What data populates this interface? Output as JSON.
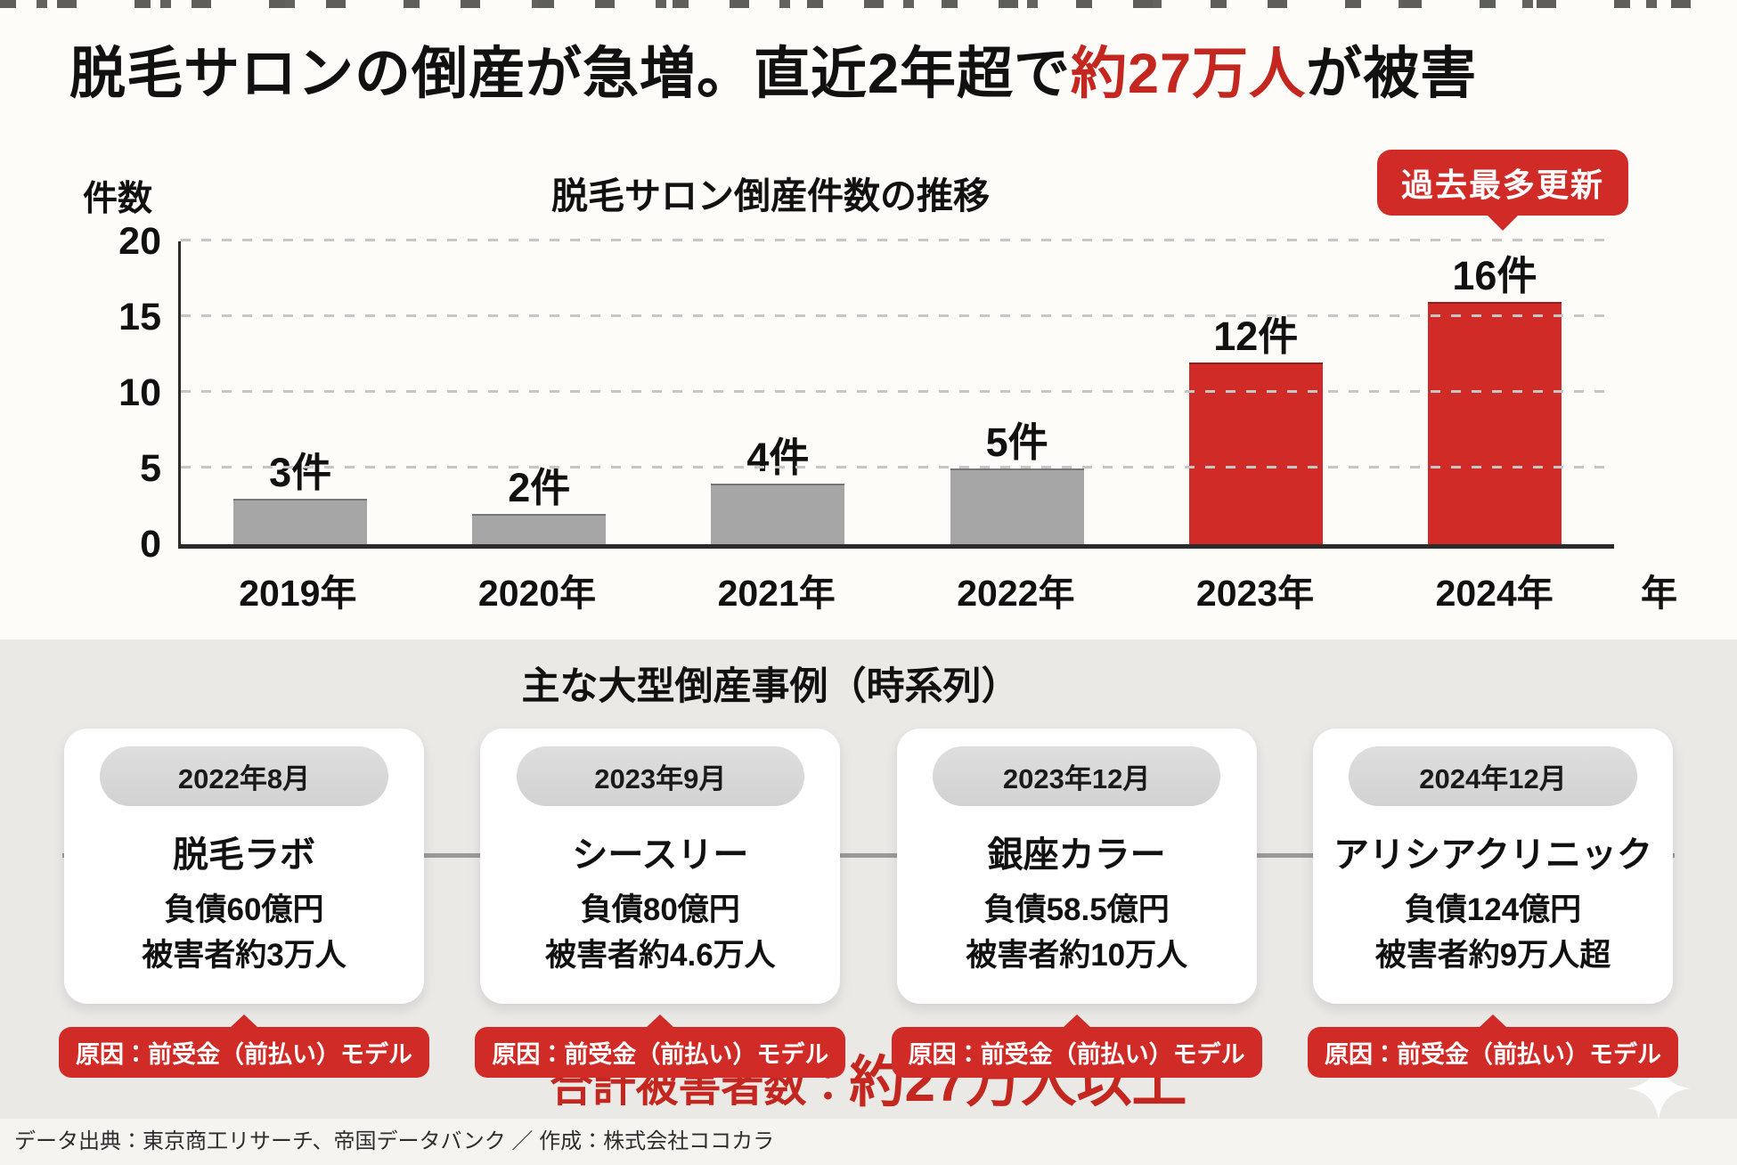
{
  "title": {
    "pre": "脱毛サロンの倒産が急増。直近2年超で",
    "highlight": "約27万人",
    "post": "が被害"
  },
  "chart": {
    "title": "脱毛サロン倒産件数の推移",
    "y_axis_title": "件数",
    "x_axis_unit": "年",
    "badge": "過去最多更新"
  },
  "chart_data": {
    "type": "bar",
    "title": "脱毛サロン倒産件数の推移",
    "categories": [
      "2019年",
      "2020年",
      "2021年",
      "2022年",
      "2023年",
      "2024年"
    ],
    "values": [
      3,
      2,
      4,
      5,
      12,
      16
    ],
    "bar_labels": [
      "3件",
      "2件",
      "4件",
      "5件",
      "12件",
      "16件"
    ],
    "bar_colors": [
      "gray",
      "gray",
      "gray",
      "gray",
      "red",
      "red"
    ],
    "xlabel": "年",
    "ylabel": "件数",
    "ylim": [
      0,
      20
    ],
    "y_ticks": [
      0,
      5,
      10,
      15,
      20
    ],
    "grid": "horizontal-dashed",
    "legend": "none",
    "annotation": {
      "text": "過去最多更新",
      "target": "2024年"
    }
  },
  "timeline": {
    "title": "主な大型倒産事例（時系列）",
    "cases": [
      {
        "date": "2022年8月",
        "name": "脱毛ラボ",
        "debt": "負債60億円",
        "victims": "被害者約3万人",
        "cause": "原因：前受金（前払い）モデル"
      },
      {
        "date": "2023年9月",
        "name": "シースリー",
        "debt": "負債80億円",
        "victims": "被害者約4.6万人",
        "cause": "原因：前受金（前払い）モデル"
      },
      {
        "date": "2023年12月",
        "name": "銀座カラー",
        "debt": "負債58.5億円",
        "victims": "被害者約10万人",
        "cause": "原因：前受金（前払い）モデル"
      },
      {
        "date": "2024年12月",
        "name": "アリシアクリニック",
        "debt": "負債124億円",
        "victims": "被害者約9万人超",
        "cause": "原因：前受金（前払い）モデル"
      }
    ]
  },
  "total": {
    "label": "合計被害者数：",
    "value": "約27万人以上"
  },
  "footer": {
    "source": "データ出典：東京商工リサーチ、帝国データバンク ／ 作成：株式会社ココカラ"
  },
  "colors": {
    "accent_red": "#d02b27",
    "text_red": "#c4271f",
    "bar_gray": "#a6a6a6",
    "axis_dark": "#2b2b2b",
    "card_bg": "#ffffff",
    "section_bg": "#ebe9e6",
    "page_bg": "#fdfcf9",
    "pill_gray": "#d2d2d2",
    "footer_bg": "#f5f4f1"
  }
}
